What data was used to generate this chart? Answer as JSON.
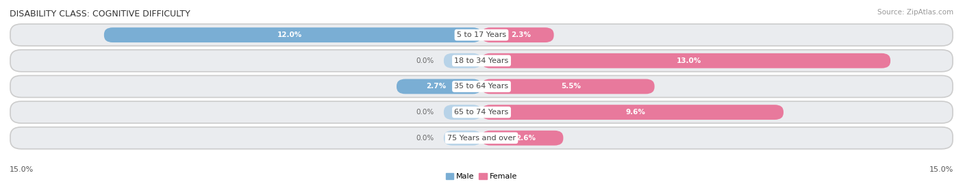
{
  "title": "DISABILITY CLASS: COGNITIVE DIFFICULTY",
  "source": "Source: ZipAtlas.com",
  "categories": [
    "5 to 17 Years",
    "18 to 34 Years",
    "35 to 64 Years",
    "65 to 74 Years",
    "75 Years and over"
  ],
  "male_values": [
    12.0,
    0.0,
    2.7,
    0.0,
    0.0
  ],
  "female_values": [
    2.3,
    13.0,
    5.5,
    9.6,
    2.6
  ],
  "max_val": 15.0,
  "male_color": "#7aaed4",
  "female_color": "#e8799c",
  "male_color_light": "#b8d3e8",
  "female_color_light": "#f0b0c0",
  "row_bg_color": "#eaecef",
  "title_fontsize": 9,
  "label_fontsize": 8,
  "tick_fontsize": 8,
  "source_fontsize": 7.5,
  "value_fontsize": 7.5
}
